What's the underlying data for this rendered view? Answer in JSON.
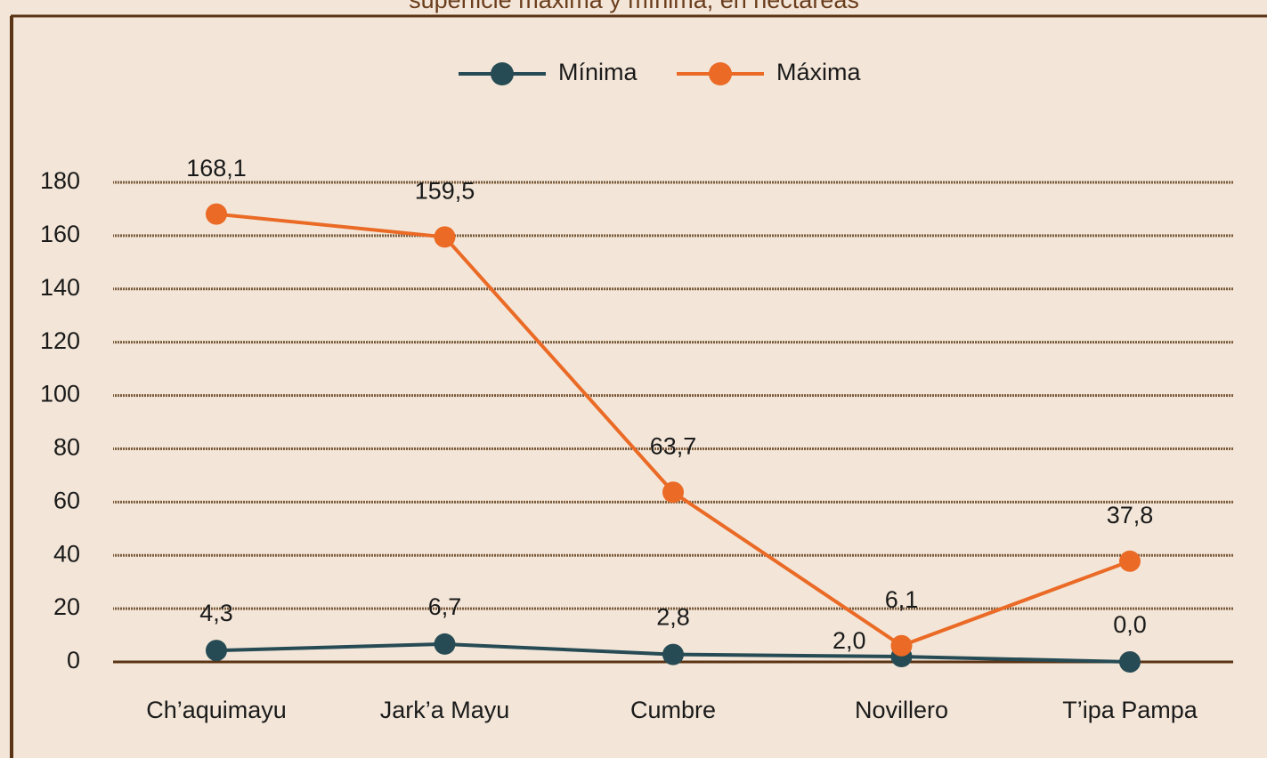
{
  "chart_data": {
    "type": "line",
    "title": "superficie máxima y mínima, en hectáreas",
    "categories": [
      "Ch’aquimayu",
      "Jark’a Mayu",
      "Cumbre",
      "Novillero",
      "T’ipa Pampa"
    ],
    "series": [
      {
        "name": "Mínima",
        "color": "#274b54",
        "values": [
          4.3,
          6.7,
          2.8,
          2.0,
          0.0
        ],
        "value_labels": [
          "4,3",
          "6,7",
          "2,8",
          "2,0",
          "0,0"
        ]
      },
      {
        "name": "Máxima",
        "color": "#ea6a26",
        "values": [
          168.1,
          159.5,
          63.7,
          6.1,
          37.8
        ],
        "value_labels": [
          "168,1",
          "159,5",
          "63,7",
          "6,1",
          "37,8"
        ]
      }
    ],
    "ylim": [
      0,
      180
    ],
    "yticks": [
      0,
      20,
      40,
      60,
      80,
      100,
      120,
      140,
      160,
      180
    ],
    "grid": true,
    "legend": "top"
  }
}
